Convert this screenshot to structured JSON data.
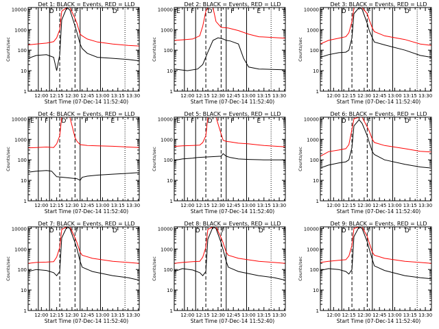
{
  "common": {
    "xlabel": "Start Time (07-Dec-14 11:52:40)",
    "ylabel": "Counts/sec",
    "xticks": [
      "12:00",
      "12:15",
      "12:30",
      "12:45",
      "13:00",
      "13:15",
      "13:30"
    ],
    "xtick_minutes": [
      0,
      15,
      30,
      45,
      60,
      75,
      90
    ],
    "xlim_minutes": [
      -13,
      96
    ],
    "yticks": [
      "1",
      "10",
      "100",
      "1000",
      "10000"
    ],
    "ylim": [
      1,
      12000
    ],
    "yscale": "log",
    "colors": {
      "events": "#000000",
      "lld": "#ff0000"
    }
  },
  "chart_data": [
    {
      "type": "line",
      "title": "Det 1: BLACK = Events, RED = LLD",
      "markers": [
        "D",
        "F",
        "D"
      ],
      "solid_lines": [
        -3,
        8,
        38,
        58
      ],
      "dashed_lines": [
        18,
        33
      ],
      "dotted_lines": [
        82
      ],
      "series": [
        {
          "name": "Events",
          "color": "#000000",
          "x": [
            -13,
            -5,
            5,
            12,
            15,
            18,
            20,
            25,
            28,
            33,
            35,
            38,
            40,
            45,
            55,
            70,
            85,
            96
          ],
          "values": [
            40,
            55,
            60,
            45,
            10,
            60,
            3000,
            12000,
            9000,
            1500,
            700,
            200,
            120,
            70,
            45,
            40,
            35,
            30
          ]
        },
        {
          "name": "LLD",
          "color": "#ff0000",
          "x": [
            -13,
            -5,
            5,
            12,
            15,
            18,
            20,
            25,
            28,
            33,
            35,
            38,
            40,
            45,
            55,
            70,
            85,
            96
          ],
          "values": [
            180,
            200,
            220,
            260,
            400,
            1000,
            8000,
            12000,
            12000,
            3500,
            2000,
            600,
            500,
            350,
            250,
            200,
            170,
            160
          ]
        }
      ]
    },
    {
      "title": "Det 2: BLACK = Events, RED = LLD",
      "markers": [
        "E",
        "F",
        "D",
        "F",
        "E"
      ],
      "solid_lines": [
        -3,
        8,
        38,
        58
      ],
      "dashed_lines": [
        18,
        33
      ],
      "dotted_lines": [
        82
      ],
      "series": [
        {
          "name": "Events",
          "x": [
            -13,
            0,
            10,
            15,
            20,
            25,
            30,
            35,
            38,
            42,
            50,
            55,
            60,
            70,
            96
          ],
          "values": [
            12,
            10,
            12,
            20,
            80,
            300,
            400,
            350,
            300,
            280,
            200,
            40,
            15,
            12,
            11
          ]
        },
        {
          "name": "LLD",
          "x": [
            -13,
            -5,
            5,
            12,
            15,
            18,
            20,
            25,
            28,
            33,
            40,
            50,
            60,
            70,
            96
          ],
          "values": [
            300,
            320,
            350,
            500,
            1500,
            8000,
            12000,
            12000,
            2500,
            1300,
            1200,
            900,
            600,
            450,
            380
          ]
        }
      ]
    },
    {
      "title": "Det 3: BLACK = Events, RED = LLD",
      "markers": [
        "D",
        "F",
        "D"
      ],
      "solid_lines": [
        -3,
        8,
        38,
        58
      ],
      "dashed_lines": [
        18,
        33
      ],
      "dotted_lines": [
        82
      ],
      "series": [
        {
          "name": "Events",
          "x": [
            -13,
            -5,
            5,
            12,
            15,
            18,
            20,
            25,
            28,
            33,
            35,
            38,
            40,
            50,
            70,
            85,
            96
          ],
          "values": [
            45,
            60,
            75,
            80,
            100,
            400,
            6000,
            12000,
            10000,
            2000,
            900,
            400,
            250,
            180,
            100,
            55,
            45
          ]
        },
        {
          "name": "LLD",
          "x": [
            -13,
            -5,
            5,
            12,
            15,
            18,
            20,
            25,
            28,
            33,
            35,
            38,
            40,
            50,
            70,
            85,
            96
          ],
          "values": [
            200,
            300,
            380,
            450,
            700,
            2500,
            12000,
            12000,
            12000,
            6000,
            3000,
            1200,
            800,
            500,
            330,
            200,
            170
          ]
        }
      ]
    },
    {
      "title": "Det 4: BLACK = Events, RED = LLD",
      "markers": [
        "E",
        "F",
        "D",
        "F",
        "E"
      ],
      "solid_lines": [
        -3,
        8,
        38,
        58
      ],
      "dashed_lines": [
        18,
        33
      ],
      "dotted_lines": [
        82
      ],
      "series": [
        {
          "name": "Events",
          "x": [
            -13,
            -5,
            5,
            10,
            15,
            35,
            38,
            40,
            45,
            55,
            70,
            85,
            96
          ],
          "values": [
            25,
            28,
            30,
            28,
            15,
            12,
            10,
            14,
            16,
            18,
            20,
            22,
            24
          ]
        },
        {
          "name": "LLD",
          "x": [
            -13,
            -5,
            5,
            12,
            15,
            18,
            20,
            25,
            28,
            33,
            35,
            38,
            45,
            55,
            70,
            85,
            96
          ],
          "values": [
            380,
            400,
            420,
            400,
            600,
            1500,
            12000,
            12000,
            12000,
            1200,
            800,
            550,
            500,
            480,
            460,
            420,
            400
          ]
        }
      ]
    },
    {
      "title": "Det 5: BLACK = Events, RED = LLD",
      "markers": [
        "E",
        "F",
        "D",
        "F",
        "E"
      ],
      "solid_lines": [
        -3,
        8,
        38,
        58
      ],
      "dashed_lines": [
        18,
        33
      ],
      "dotted_lines": [
        82
      ],
      "series": [
        {
          "name": "Events",
          "x": [
            -13,
            -5,
            5,
            10,
            33,
            35,
            38,
            42,
            50,
            60,
            75,
            96
          ],
          "values": [
            95,
            110,
            120,
            130,
            150,
            200,
            150,
            130,
            110,
            105,
            100,
            100
          ]
        },
        {
          "name": "LLD",
          "x": [
            -13,
            -5,
            5,
            12,
            15,
            18,
            20,
            25,
            28,
            33,
            35,
            38,
            42,
            50,
            60,
            75,
            96
          ],
          "values": [
            450,
            480,
            500,
            520,
            700,
            1500,
            12000,
            12000,
            12000,
            1800,
            900,
            800,
            750,
            650,
            600,
            500,
            430
          ]
        }
      ]
    },
    {
      "title": "Det 6: BLACK = Events, RED = LLD",
      "markers": [
        "D",
        "F",
        "D"
      ],
      "solid_lines": [
        -3,
        8,
        38,
        58
      ],
      "dashed_lines": [
        18,
        33
      ],
      "dotted_lines": [
        82
      ],
      "series": [
        {
          "name": "Events",
          "x": [
            -13,
            -5,
            5,
            12,
            15,
            18,
            20,
            25,
            28,
            33,
            35,
            38,
            40,
            50,
            70,
            85,
            96
          ],
          "values": [
            40,
            55,
            70,
            80,
            100,
            400,
            4500,
            9000,
            6000,
            1500,
            700,
            250,
            180,
            100,
            60,
            45,
            40
          ]
        },
        {
          "name": "LLD",
          "x": [
            -13,
            -5,
            5,
            12,
            15,
            18,
            20,
            25,
            28,
            33,
            35,
            38,
            40,
            50,
            70,
            85,
            96
          ],
          "values": [
            150,
            250,
            300,
            350,
            550,
            3000,
            10000,
            12000,
            12000,
            4000,
            2500,
            1000,
            700,
            500,
            350,
            260,
            240
          ]
        }
      ]
    },
    {
      "title": "Det 7: BLACK = Events, RED = LLD",
      "markers": [
        "D",
        "F",
        "D"
      ],
      "solid_lines": [
        -3,
        8,
        38,
        58
      ],
      "dashed_lines": [
        18,
        33
      ],
      "dotted_lines": [
        82
      ],
      "series": [
        {
          "name": "Events",
          "x": [
            -13,
            -5,
            5,
            12,
            15,
            18,
            20,
            25,
            28,
            33,
            35,
            38,
            40,
            50,
            70,
            85,
            96
          ],
          "values": [
            80,
            100,
            90,
            70,
            50,
            80,
            3500,
            12000,
            10000,
            2000,
            1000,
            250,
            130,
            80,
            50,
            40,
            30
          ]
        },
        {
          "name": "LLD",
          "x": [
            -13,
            -5,
            5,
            12,
            15,
            18,
            20,
            25,
            28,
            33,
            35,
            38,
            40,
            50,
            70,
            85,
            96
          ],
          "values": [
            200,
            220,
            230,
            240,
            400,
            1200,
            9000,
            12000,
            12000,
            3500,
            2000,
            700,
            500,
            350,
            250,
            220,
            200
          ]
        }
      ]
    },
    {
      "title": "Det 8: BLACK = Events, RED = LLD",
      "markers": [
        "D",
        "F",
        "D"
      ],
      "solid_lines": [
        -3,
        8,
        38,
        58
      ],
      "dashed_lines": [
        18,
        33
      ],
      "dotted_lines": [
        82
      ],
      "series": [
        {
          "name": "Events",
          "x": [
            -13,
            -5,
            5,
            12,
            15,
            18,
            20,
            25,
            28,
            33,
            35,
            38,
            40,
            50,
            70,
            85,
            96
          ],
          "values": [
            80,
            110,
            95,
            70,
            50,
            80,
            3000,
            12000,
            10000,
            2000,
            900,
            250,
            130,
            80,
            50,
            40,
            30
          ]
        },
        {
          "name": "LLD",
          "x": [
            -13,
            -5,
            5,
            12,
            15,
            18,
            20,
            25,
            28,
            33,
            35,
            38,
            40,
            50,
            70,
            85,
            96
          ],
          "values": [
            200,
            220,
            240,
            250,
            400,
            1200,
            9000,
            12000,
            12000,
            3500,
            2000,
            700,
            500,
            350,
            250,
            220,
            200
          ]
        }
      ]
    },
    {
      "title": "Det 9: BLACK = Events, RED = LLD",
      "markers": [
        "D",
        "F",
        "D"
      ],
      "solid_lines": [
        -3,
        8,
        38,
        58
      ],
      "dashed_lines": [
        18,
        33
      ],
      "dotted_lines": [
        82
      ],
      "series": [
        {
          "name": "Events",
          "x": [
            -13,
            -5,
            5,
            12,
            15,
            18,
            20,
            25,
            28,
            33,
            35,
            38,
            40,
            50,
            70,
            85,
            96
          ],
          "values": [
            90,
            110,
            100,
            80,
            60,
            100,
            4000,
            12000,
            10000,
            2200,
            1000,
            300,
            150,
            90,
            50,
            40,
            35
          ]
        },
        {
          "name": "LLD",
          "x": [
            -13,
            -5,
            5,
            12,
            15,
            18,
            20,
            25,
            28,
            33,
            35,
            38,
            40,
            50,
            70,
            85,
            96
          ],
          "values": [
            220,
            250,
            280,
            300,
            450,
            1500,
            10000,
            12000,
            12000,
            4000,
            2000,
            700,
            500,
            350,
            250,
            220,
            200
          ]
        }
      ]
    }
  ]
}
